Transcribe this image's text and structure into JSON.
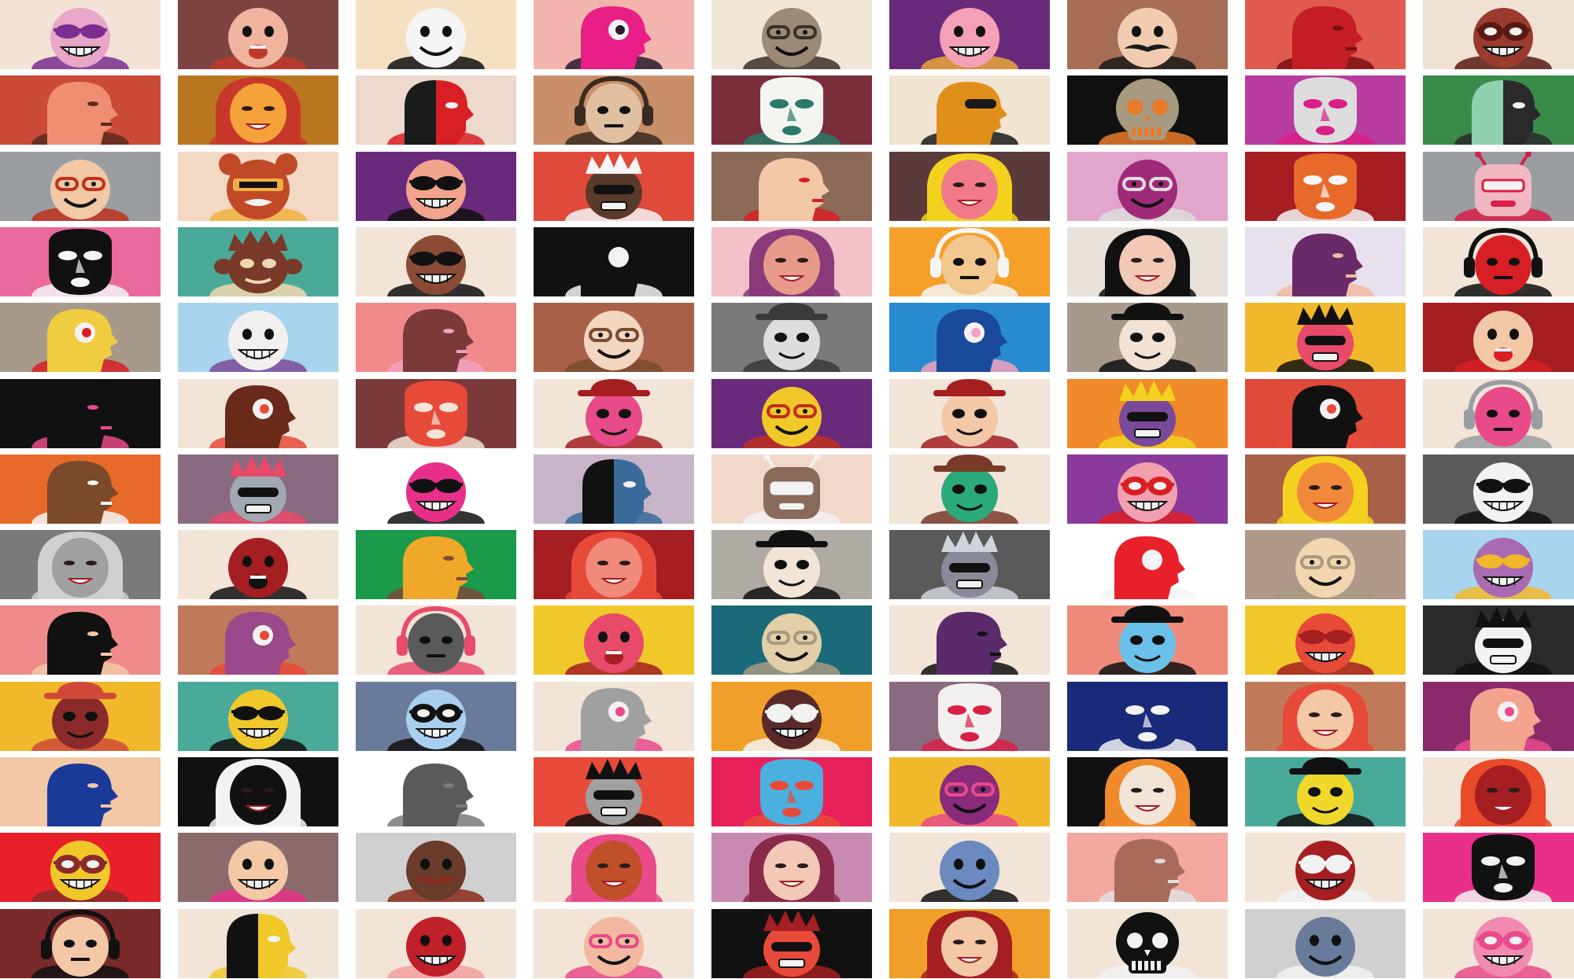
{
  "mosaic": {
    "columns": 9,
    "rows": 13,
    "background": "#ffffff",
    "tiles": [
      {
        "bg": "#f3e3d6",
        "face": "#e8a6c8",
        "feature": "#7a2e8e",
        "variant": "sunglasses"
      },
      {
        "bg": "#7d4341",
        "face": "#f0b39d",
        "feature": "#c0392b",
        "variant": "open-mouth"
      },
      {
        "bg": "#f6e0c2",
        "face": "#f5f5f5",
        "feature": "#111111",
        "variant": "smile"
      },
      {
        "bg": "#f2b5ad",
        "face": "#e91e86",
        "feature": "#2b1b2e",
        "variant": "profile-eye"
      },
      {
        "bg": "#f2e6d8",
        "face": "#9c8a78",
        "feature": "#3d3028",
        "variant": "glasses"
      },
      {
        "bg": "#6a2a7c",
        "face": "#f4a0b7",
        "feature": "#e9a63a",
        "variant": "wide-grin"
      },
      {
        "bg": "#a86e55",
        "face": "#f1ccb0",
        "feature": "#1a1a1a",
        "variant": "mustache"
      },
      {
        "bg": "#e05a4e",
        "face": "#c61e26",
        "feature": "#7a1015",
        "variant": "profile"
      },
      {
        "bg": "#efe2d5",
        "face": "#9a3b2e",
        "feature": "#5a1a14",
        "variant": "goggles"
      },
      {
        "bg": "#cc4a38",
        "face": "#f08e73",
        "feature": "#5a2a1f",
        "variant": "profile"
      },
      {
        "bg": "#b9761f",
        "face": "#f6a23a",
        "feature": "#c7382a",
        "variant": "hair"
      },
      {
        "bg": "#eed9cd",
        "face": "#1a1a1a",
        "feature": "#d81f26",
        "variant": "split"
      },
      {
        "bg": "#c98f6a",
        "face": "#e0c0a0",
        "feature": "#3a2a22",
        "variant": "headphones"
      },
      {
        "bg": "#7a2e3a",
        "face": "#f5f5f0",
        "feature": "#2a7a6a",
        "variant": "mask"
      },
      {
        "bg": "#f2e4d3",
        "face": "#e0901a",
        "feature": "#1a1a1a",
        "variant": "profile-glasses"
      },
      {
        "bg": "#111111",
        "face": "#a89a80",
        "feature": "#e87a2a",
        "variant": "skull"
      },
      {
        "bg": "#b83ca0",
        "face": "#dddddd",
        "feature": "#d91e86",
        "variant": "mask"
      },
      {
        "bg": "#3a8a4a",
        "face": "#8fd0b0",
        "feature": "#2a2a2a",
        "variant": "split"
      },
      {
        "bg": "#9a9ea2",
        "face": "#f2c8a6",
        "feature": "#c0301e",
        "variant": "glasses"
      },
      {
        "bg": "#f3d9c4",
        "face": "#c04a28",
        "feature": "#f0b040",
        "variant": "bear"
      },
      {
        "bg": "#6a2a7c",
        "face": "#f2a48e",
        "feature": "#111111",
        "variant": "sunglasses"
      },
      {
        "bg": "#e04a3a",
        "face": "#5a3a2a",
        "feature": "#f5f5f5",
        "variant": "crown"
      },
      {
        "bg": "#8c6a58",
        "face": "#f2c8a6",
        "feature": "#d81f26",
        "variant": "profile"
      },
      {
        "bg": "#5a3a3a",
        "face": "#f07a8a",
        "feature": "#f2d21e",
        "variant": "hair"
      },
      {
        "bg": "#e2a6cc",
        "face": "#a02a7a",
        "feature": "#dddddd",
        "variant": "glasses"
      },
      {
        "bg": "#a41e22",
        "face": "#e86a2a",
        "feature": "#f5f5f5",
        "variant": "mask"
      },
      {
        "bg": "#9a9ea2",
        "face": "#f2b8c2",
        "feature": "#d81f46",
        "variant": "antenna"
      },
      {
        "bg": "#ea6a9e",
        "face": "#111111",
        "feature": "#f5f5f5",
        "variant": "mask"
      },
      {
        "bg": "#4aaa9a",
        "face": "#7a3a2a",
        "feature": "#f2d8b0",
        "variant": "spiky"
      },
      {
        "bg": "#f2e4d6",
        "face": "#8a4a34",
        "feature": "#111111",
        "variant": "sunglasses"
      },
      {
        "bg": "#111111",
        "face": "#111111",
        "feature": "#f5f5f5",
        "variant": "profile-eye"
      },
      {
        "bg": "#f2c2c8",
        "face": "#e89a8a",
        "feature": "#8a3a7a",
        "variant": "hair"
      },
      {
        "bg": "#f5a02a",
        "face": "#f2c890",
        "feature": "#f5f5f5",
        "variant": "headphones"
      },
      {
        "bg": "#e9e2da",
        "face": "#f2c8b6",
        "feature": "#111111",
        "variant": "hair"
      },
      {
        "bg": "#e8e0ec",
        "face": "#6a2a6a",
        "feature": "#f2b8a0",
        "variant": "profile"
      },
      {
        "bg": "#f2e4d6",
        "face": "#d81f26",
        "feature": "#111111",
        "variant": "headphones"
      },
      {
        "bg": "#a89a8a",
        "face": "#f0cc40",
        "feature": "#d81f26",
        "variant": "profile-eye"
      },
      {
        "bg": "#a8d4ee",
        "face": "#f2f0ee",
        "feature": "#7a4a9a",
        "variant": "wide-grin"
      },
      {
        "bg": "#f08a8a",
        "face": "#7a3a3a",
        "feature": "#f2a0c0",
        "variant": "profile"
      },
      {
        "bg": "#a86048",
        "face": "#f2d6c0",
        "feature": "#7a4a30",
        "variant": "glasses"
      },
      {
        "bg": "#7a7a7a",
        "face": "#dddddd",
        "feature": "#3a3a3a",
        "variant": "hat"
      },
      {
        "bg": "#2a8ad0",
        "face": "#1a4a9a",
        "feature": "#f2a0c0",
        "variant": "profile-eye"
      },
      {
        "bg": "#a89a8a",
        "face": "#f2e2d6",
        "feature": "#111111",
        "variant": "hat"
      },
      {
        "bg": "#f0b82a",
        "face": "#e84a6a",
        "feature": "#111111",
        "variant": "crown"
      },
      {
        "bg": "#a41e22",
        "face": "#f2c8a6",
        "feature": "#d81f26",
        "variant": "open-mouth"
      },
      {
        "bg": "#111111",
        "face": "#111111",
        "feature": "#e84a8a",
        "variant": "profile"
      },
      {
        "bg": "#f2e4d6",
        "face": "#6a2a1a",
        "feature": "#e84a3a",
        "variant": "profile-eye"
      },
      {
        "bg": "#7a3a3a",
        "face": "#e84a3a",
        "feature": "#f2e4d6",
        "variant": "mask"
      },
      {
        "bg": "#f2e4d6",
        "face": "#e84a8a",
        "feature": "#a41e22",
        "variant": "hat"
      },
      {
        "bg": "#6a2a7c",
        "face": "#f0c82a",
        "feature": "#c0301e",
        "variant": "glasses"
      },
      {
        "bg": "#f2e4d6",
        "face": "#f2c8a6",
        "feature": "#a41e22",
        "variant": "hat"
      },
      {
        "bg": "#f08a2a",
        "face": "#7a4a9a",
        "feature": "#f2d21e",
        "variant": "crown"
      },
      {
        "bg": "#e04a3a",
        "face": "#111111",
        "feature": "#e84a3a",
        "variant": "profile-eye"
      },
      {
        "bg": "#f2e4d6",
        "face": "#e84a8a",
        "feature": "#9a9ea2",
        "variant": "headphones"
      },
      {
        "bg": "#e86a2a",
        "face": "#7a4a2a",
        "feature": "#f5f5f5",
        "variant": "profile"
      },
      {
        "bg": "#8a6a80",
        "face": "#a0a8b0",
        "feature": "#e84a6a",
        "variant": "crown"
      },
      {
        "bg": "#ffffff",
        "face": "#e8308a",
        "feature": "#111111",
        "variant": "sunglasses"
      },
      {
        "bg": "#c8b4c8",
        "face": "#111111",
        "feature": "#3a6a9a",
        "variant": "split"
      },
      {
        "bg": "#f2d8cc",
        "face": "#8a6a5a",
        "feature": "#f2f2f2",
        "variant": "antenna"
      },
      {
        "bg": "#f2e4d6",
        "face": "#2aaa7a",
        "feature": "#7a3a2a",
        "variant": "hat"
      },
      {
        "bg": "#8a3a9a",
        "face": "#f2a0b0",
        "feature": "#d81f26",
        "variant": "goggles"
      },
      {
        "bg": "#a86048",
        "face": "#f08a3a",
        "feature": "#f2d21e",
        "variant": "hair"
      },
      {
        "bg": "#5a5a5a",
        "face": "#f2f2f2",
        "feature": "#111111",
        "variant": "sunglasses"
      },
      {
        "bg": "#7a7a7a",
        "face": "#a0a0a0",
        "feature": "#d0d0d0",
        "variant": "hair"
      },
      {
        "bg": "#f2e4d6",
        "face": "#a41e22",
        "feature": "#111111",
        "variant": "open-mouth"
      },
      {
        "bg": "#1a9a4a",
        "face": "#f0a82a",
        "feature": "#7a4a3a",
        "variant": "profile"
      },
      {
        "bg": "#a41e22",
        "face": "#f08a7a",
        "feature": "#e84a3a",
        "variant": "hair"
      },
      {
        "bg": "#b0aaa4",
        "face": "#f2e4d6",
        "feature": "#111111",
        "variant": "hat"
      },
      {
        "bg": "#5a5a5a",
        "face": "#8a8a9a",
        "feature": "#d0d4dc",
        "variant": "crown"
      },
      {
        "bg": "#ffffff",
        "face": "#e8202a",
        "feature": "#f5f5f5",
        "variant": "profile-eye"
      },
      {
        "bg": "#b0988a",
        "face": "#f2d6b0",
        "feature": "#a89a80",
        "variant": "glasses"
      },
      {
        "bg": "#a8d4ee",
        "face": "#a86ab0",
        "feature": "#f0b82a",
        "variant": "sunglasses"
      },
      {
        "bg": "#f08a8a",
        "face": "#111111",
        "feature": "#f2c8a6",
        "variant": "profile"
      },
      {
        "bg": "#c07a5a",
        "face": "#9a4a8a",
        "feature": "#e84a3a",
        "variant": "profile-eye"
      },
      {
        "bg": "#f2e4d6",
        "face": "#5a5a5a",
        "feature": "#e84a6a",
        "variant": "headphones"
      },
      {
        "bg": "#f0c82a",
        "face": "#e84a6a",
        "feature": "#a41e22",
        "variant": "open-mouth"
      },
      {
        "bg": "#1a6a7a",
        "face": "#e2cfa8",
        "feature": "#a89a80",
        "variant": "glasses"
      },
      {
        "bg": "#f2e4d6",
        "face": "#5a2a6a",
        "feature": "#111111",
        "variant": "profile"
      },
      {
        "bg": "#f08a7a",
        "face": "#6ac0e8",
        "feature": "#111111",
        "variant": "hat"
      },
      {
        "bg": "#f0c82a",
        "face": "#e84a3a",
        "feature": "#a41e22",
        "variant": "sunglasses"
      },
      {
        "bg": "#2a2a2a",
        "face": "#f2f2f2",
        "feature": "#111111",
        "variant": "crown"
      },
      {
        "bg": "#f0b82a",
        "face": "#8a2a2a",
        "feature": "#d04a3a",
        "variant": "hat"
      },
      {
        "bg": "#4aaa9a",
        "face": "#f0c82a",
        "feature": "#111111",
        "variant": "sunglasses"
      },
      {
        "bg": "#6a7a9a",
        "face": "#a8d0ee",
        "feature": "#111111",
        "variant": "goggles"
      },
      {
        "bg": "#f2e4d6",
        "face": "#a0a0a0",
        "feature": "#e84a8a",
        "variant": "profile-eye"
      },
      {
        "bg": "#f0a02a",
        "face": "#5a2a2a",
        "feature": "#f2f2f2",
        "variant": "goggles"
      },
      {
        "bg": "#8a6a80",
        "face": "#f2f0ee",
        "feature": "#d81f46",
        "variant": "mask"
      },
      {
        "bg": "#1a2a7a",
        "face": "#1a2a7a",
        "feature": "#f2f2f2",
        "variant": "mask"
      },
      {
        "bg": "#c07a5a",
        "face": "#f2c8a6",
        "feature": "#e84a3a",
        "variant": "hair"
      },
      {
        "bg": "#8a2a6a",
        "face": "#f2a48e",
        "feature": "#e84a8a",
        "variant": "profile-eye"
      },
      {
        "bg": "#f2c8a6",
        "face": "#1a3a9a",
        "feature": "#f2c8a6",
        "variant": "profile"
      },
      {
        "bg": "#111111",
        "face": "#111111",
        "feature": "#f2f2f2",
        "variant": "hair"
      },
      {
        "bg": "#ffffff",
        "face": "#5a5a5a",
        "feature": "#7a7a7a",
        "variant": "profile"
      },
      {
        "bg": "#e84a3a",
        "face": "#a0a0a0",
        "feature": "#111111",
        "variant": "crown"
      },
      {
        "bg": "#e8205a",
        "face": "#4ab0e0",
        "feature": "#e84a3a",
        "variant": "mask"
      },
      {
        "bg": "#f0b82a",
        "face": "#8a2a7a",
        "feature": "#e84a8a",
        "variant": "glasses"
      },
      {
        "bg": "#111111",
        "face": "#f2e4d6",
        "feature": "#f08a2a",
        "variant": "hair"
      },
      {
        "bg": "#4aaa9a",
        "face": "#f0d82a",
        "feature": "#111111",
        "variant": "hat"
      },
      {
        "bg": "#f2e4d6",
        "face": "#a41e22",
        "feature": "#e84a2a",
        "variant": "hair"
      },
      {
        "bg": "#e8202a",
        "face": "#f0c82a",
        "feature": "#8a2a2a",
        "variant": "goggles"
      },
      {
        "bg": "#8a6a6a",
        "face": "#f2c8a6",
        "feature": "#e8308a",
        "variant": "wide-grin"
      },
      {
        "bg": "#d0d0d0",
        "face": "#6a3a2a",
        "feature": "#8a2a1a",
        "variant": "mustache"
      },
      {
        "bg": "#f2e4d6",
        "face": "#c0502a",
        "feature": "#e84a8a",
        "variant": "hair"
      },
      {
        "bg": "#c88ab0",
        "face": "#f2c8b6",
        "feature": "#8a2a4a",
        "variant": "hair"
      },
      {
        "bg": "#f2e4d6",
        "face": "#6a8ac0",
        "feature": "#111111",
        "variant": "smile"
      },
      {
        "bg": "#f2a8a0",
        "face": "#a86a5a",
        "feature": "#e0e0e0",
        "variant": "profile"
      },
      {
        "bg": "#f2e4d6",
        "face": "#a41e22",
        "feature": "#f2f2f2",
        "variant": "goggles"
      },
      {
        "bg": "#e8308a",
        "face": "#111111",
        "feature": "#f2f2f2",
        "variant": "mask"
      },
      {
        "bg": "#7a2a2a",
        "face": "#f2c8a6",
        "feature": "#111111",
        "variant": "headphones"
      },
      {
        "bg": "#f2e4d6",
        "face": "#111111",
        "feature": "#f0c82a",
        "variant": "split"
      },
      {
        "bg": "#f2e4d6",
        "face": "#c0202a",
        "feature": "#f2a0a0",
        "variant": "wide-grin"
      },
      {
        "bg": "#f2e4d6",
        "face": "#f2b8a0",
        "feature": "#e84a8a",
        "variant": "glasses"
      },
      {
        "bg": "#111111",
        "face": "#e84a3a",
        "feature": "#a41e22",
        "variant": "crown"
      },
      {
        "bg": "#f0a02a",
        "face": "#f2c8a6",
        "feature": "#a41e22",
        "variant": "hair"
      },
      {
        "bg": "#f2e4d6",
        "face": "#111111",
        "feature": "#f2f2f2",
        "variant": "skull"
      },
      {
        "bg": "#d0d0d0",
        "face": "#6a7a9a",
        "feature": "#f2f2f2",
        "variant": "smile"
      },
      {
        "bg": "#f2e4d6",
        "face": "#f08ab0",
        "feature": "#e84a8a",
        "variant": "goggles"
      }
    ]
  }
}
